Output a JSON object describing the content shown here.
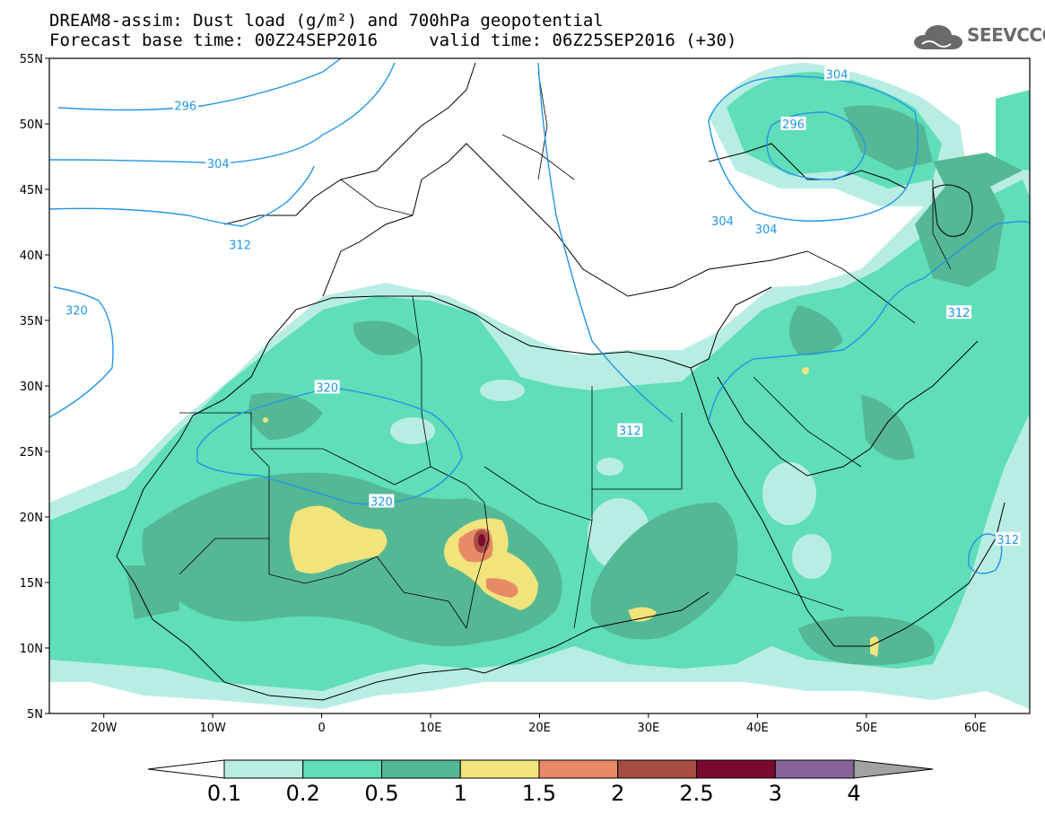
{
  "header": {
    "title_line1": "DREAM8-assim: Dust load (g/m²) and 700hPa geopotential",
    "title_line2": "Forecast base time: 00Z24SEP2016     valid time: 06Z25SEP2016 (+30)",
    "logo_text": "SEEVCCC"
  },
  "map": {
    "lon_range": [
      -25,
      65
    ],
    "lat_range": [
      5,
      55
    ],
    "lat_labels": [
      "55N",
      "50N",
      "45N",
      "40N",
      "35N",
      "30N",
      "25N",
      "20N",
      "15N",
      "10N",
      "5N"
    ],
    "lon_labels": [
      "20W",
      "10W",
      "0",
      "10E",
      "20E",
      "30E",
      "40E",
      "50E",
      "60E"
    ],
    "geopotential_labels": [
      {
        "text": "296",
        "lon": -12.5,
        "lat": 51.4
      },
      {
        "text": "296",
        "lon": 43.3,
        "lat": 50.0
      },
      {
        "text": "304",
        "lon": 47.3,
        "lat": 53.8
      },
      {
        "text": "304",
        "lon": -9.5,
        "lat": 47.0
      },
      {
        "text": "304",
        "lon": 36.8,
        "lat": 42.6
      },
      {
        "text": "304",
        "lon": 40.8,
        "lat": 42.0
      },
      {
        "text": "312",
        "lon": -7.5,
        "lat": 40.8
      },
      {
        "text": "312",
        "lon": 28.3,
        "lat": 26.6
      },
      {
        "text": "312",
        "lon": 58.5,
        "lat": 35.6
      },
      {
        "text": "312",
        "lon": 63.0,
        "lat": 18.3
      },
      {
        "text": "320",
        "lon": -22.5,
        "lat": 35.8
      },
      {
        "text": "320",
        "lon": 0.5,
        "lat": 29.9
      },
      {
        "text": "320",
        "lon": 5.5,
        "lat": 21.2
      }
    ]
  },
  "colorbar": {
    "labels": [
      "0.1",
      "0.2",
      "0.5",
      "1",
      "1.5",
      "2",
      "2.5",
      "3",
      "4"
    ],
    "colors": [
      "#b8ede4",
      "#5fdeb8",
      "#54b894",
      "#f2e47c",
      "#e98a67",
      "#a74d44",
      "#7b0b2e",
      "#886399"
    ],
    "under_color": "#ffffff",
    "over_color": "#a2a2a2"
  }
}
